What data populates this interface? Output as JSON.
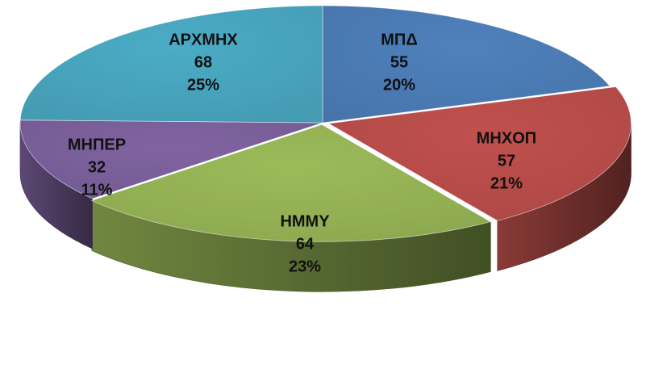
{
  "chart_data": {
    "type": "pie",
    "style": "3d-exploded-perspective",
    "slices": [
      {
        "label": "ΜΠΔ",
        "value": 55,
        "percent": "20%",
        "color": "#4F81BD"
      },
      {
        "label": "ΜΗΧΟΠ",
        "value": 57,
        "percent": "21%",
        "color": "#C0504D"
      },
      {
        "label": "ΗΜΜΥ",
        "value": 64,
        "percent": "23%",
        "color": "#9BBB59"
      },
      {
        "label": "ΜΗΠΕΡ",
        "value": 32,
        "percent": "11%",
        "color": "#8064A2"
      },
      {
        "label": "ΑΡΧΜΗΧ",
        "value": 68,
        "percent": "25%",
        "color": "#4BACC6"
      }
    ]
  }
}
